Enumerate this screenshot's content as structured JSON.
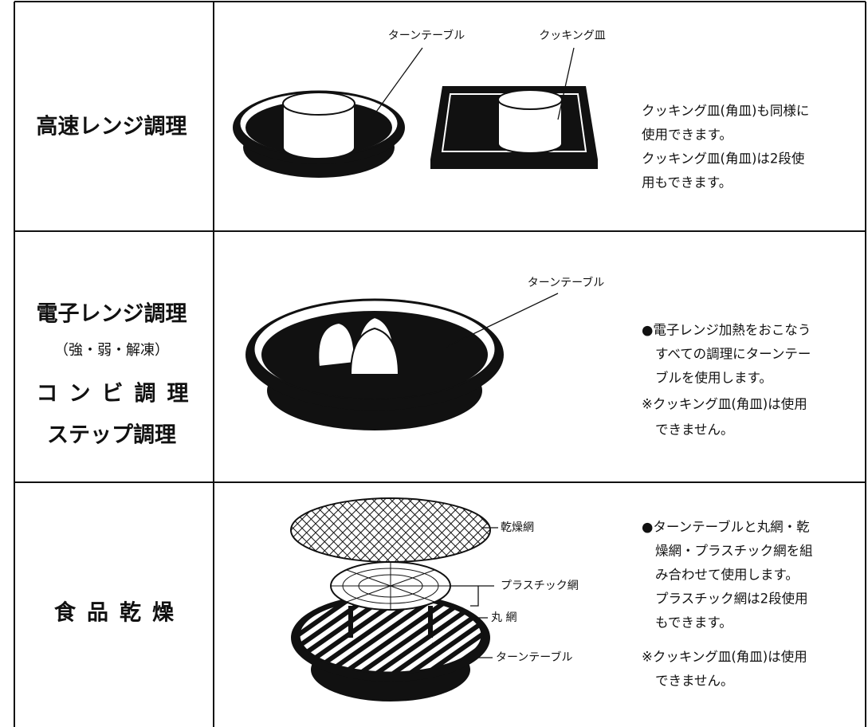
{
  "rows": [
    {
      "heading": [
        "高速レンジ調理"
      ],
      "diagram_labels": [
        "ターンテーブル",
        "クッキング皿"
      ],
      "notes": [
        "クッキング皿(角皿)も同様に",
        "使用できます。",
        "クッキング皿(角皿)は2段使",
        "用もできます。"
      ]
    },
    {
      "heading": [
        "電子レンジ調理",
        "（強・弱・解凍）",
        "コンビ調理",
        "ステップ調理"
      ],
      "diagram_labels": [
        "ターンテーブル"
      ],
      "notes": [
        "●電子レンジ加熱をおこなう",
        "すべての調理にターンテー",
        "ブルを使用します。",
        "※クッキング皿(角皿)は使用",
        "できません。"
      ]
    },
    {
      "heading": [
        "食品乾燥"
      ],
      "diagram_labels": [
        "乾燥網",
        "プラスチック網",
        "丸 網",
        "ターンテーブル"
      ],
      "notes": [
        "●ターンテーブルと丸網・乾",
        "燥網・プラスチック網を組",
        "み合わせて使用します。",
        "プラスチック網は2段使用",
        "もできます。",
        "※クッキング皿(角皿)は使用",
        "できません。"
      ]
    }
  ]
}
